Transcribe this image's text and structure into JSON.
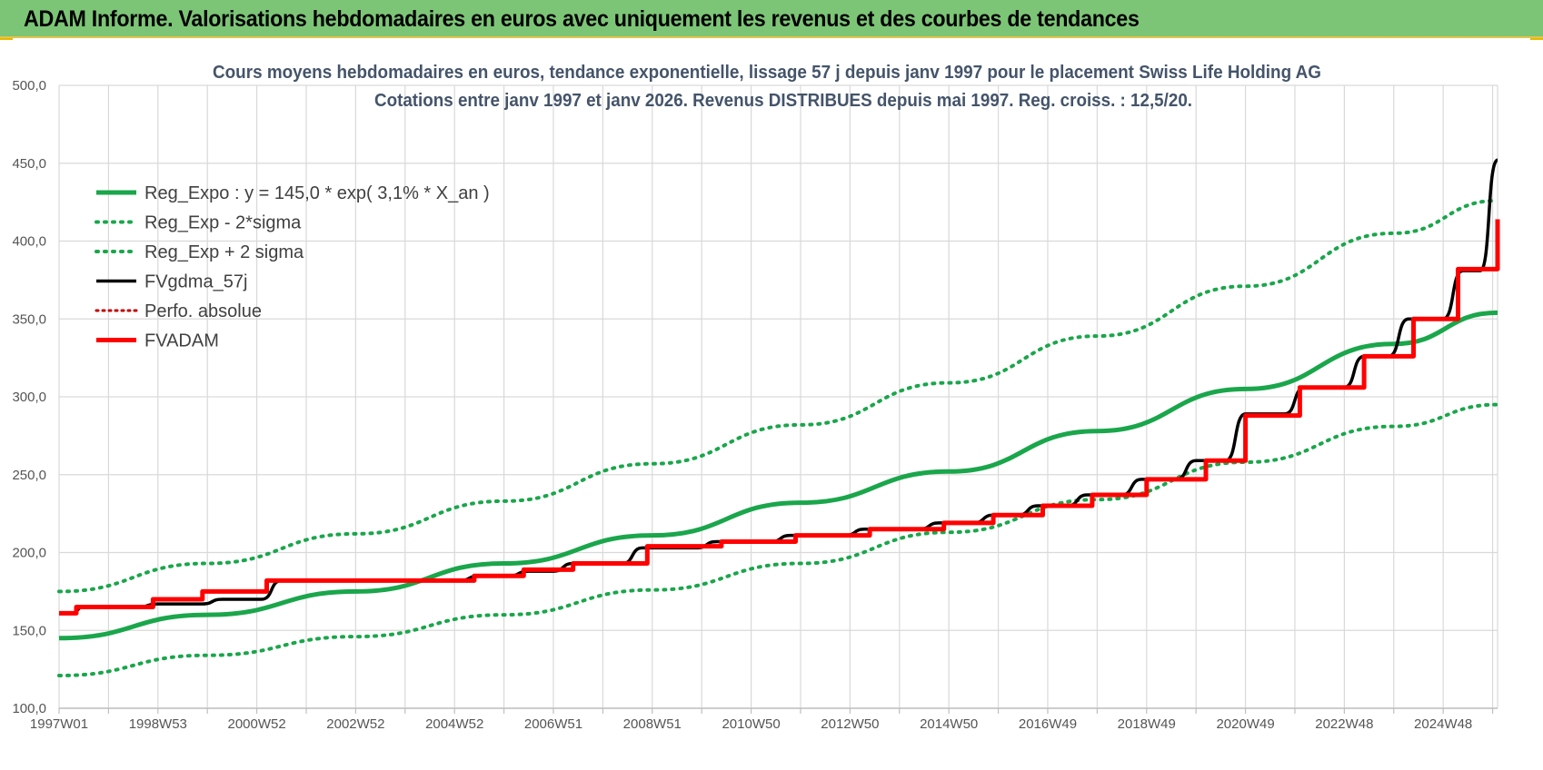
{
  "page": {
    "banner_title": "ADAM Informe. Valorisations hebdomadaires en euros avec uniquement les revenus et des courbes de tendances"
  },
  "colors": {
    "banner": "#7cc576",
    "trend": "#1aa64b",
    "band": "#1aa64b",
    "fvgdma": "#000000",
    "perfo": "#c00000",
    "fvadam": "#ff0000",
    "grid": "#d9d9d9",
    "title": "#44546a"
  },
  "chart_data": {
    "type": "line",
    "title_line1": "Cours moyens hebdomadaires en euros, tendance exponentielle, lissage 57 j depuis janv 1997 pour le placement Swiss Life Holding AG",
    "title_line2": "Cotations entre janv 1997 et janv 2026. Revenus DISTRIBUES depuis mai 1997. Reg. croiss. : 12,5/20.",
    "x_range": [
      1997.0,
      2026.1
    ],
    "ylim": [
      100,
      500
    ],
    "y_ticks": [
      "100,0",
      "150,0",
      "200,0",
      "250,0",
      "300,0",
      "350,0",
      "400,0",
      "450,0",
      "500,0"
    ],
    "y_tick_values": [
      100,
      150,
      200,
      250,
      300,
      350,
      400,
      450,
      500
    ],
    "x_tick_labels": [
      "1997W01",
      "1998W53",
      "2000W52",
      "2002W52",
      "2004W52",
      "2006W51",
      "2008W51",
      "2010W50",
      "2012W50",
      "2014W50",
      "2016W49",
      "2018W49",
      "2020W49",
      "2022W48",
      "2024W48"
    ],
    "x_tick_values": [
      1997.0,
      1999.0,
      2001.0,
      2003.0,
      2005.0,
      2007.0,
      2009.0,
      2011.0,
      2013.0,
      2015.0,
      2017.0,
      2019.0,
      2021.0,
      2023.0,
      2025.0
    ],
    "grid": true,
    "legend_position": "top-left",
    "series": [
      {
        "name": "Reg_Expo : y = 145,0 * exp( 3,1% *  X_an )",
        "style": "solid-thick",
        "x": [
          1997.0,
          2000.0,
          2003.0,
          2006.0,
          2009.0,
          2012.0,
          2015.0,
          2018.0,
          2021.0,
          2024.0,
          2026.1
        ],
        "values": [
          145.0,
          160.0,
          175.0,
          193.0,
          211.0,
          232.0,
          252.0,
          278.0,
          305.0,
          334.0,
          354.0
        ]
      },
      {
        "name": "Reg_Exp - 2*sigma",
        "style": "dotted",
        "x": [
          1997.0,
          2000.0,
          2003.0,
          2006.0,
          2009.0,
          2012.0,
          2015.0,
          2018.0,
          2021.0,
          2024.0,
          2026.1
        ],
        "values": [
          121.0,
          134.0,
          146.0,
          160.0,
          176.0,
          193.0,
          213.0,
          234.0,
          258.0,
          281.0,
          295.0
        ]
      },
      {
        "name": "Reg_Exp + 2 sigma",
        "style": "dotted",
        "x": [
          1997.0,
          2000.0,
          2003.0,
          2006.0,
          2009.0,
          2012.0,
          2015.0,
          2018.0,
          2021.0,
          2024.0,
          2026.1
        ],
        "values": [
          175.0,
          193.0,
          212.0,
          233.0,
          257.0,
          282.0,
          309.0,
          339.0,
          371.0,
          405.0,
          426.0
        ]
      },
      {
        "name": "FVgdma_57j",
        "style": "solid",
        "x": [
          1997.0,
          1997.5,
          1999.0,
          2000.3,
          2001.5,
          2004.4,
          2005.5,
          2006.5,
          2007.4,
          2008.8,
          2010.3,
          2011.8,
          2013.3,
          2014.8,
          2015.9,
          2016.8,
          2017.8,
          2018.9,
          2020.0,
          2021.0,
          2022.2,
          2023.4,
          2024.3,
          2025.4,
          2026.1
        ],
        "values": [
          161.0,
          165.0,
          167.0,
          170.0,
          182.0,
          182.0,
          185.0,
          188.0,
          193.0,
          203.0,
          207.0,
          211.0,
          215.0,
          219.0,
          224.0,
          230.0,
          237.0,
          247.0,
          259.0,
          289.0,
          306.0,
          326.0,
          350.0,
          381.0,
          452.0
        ]
      },
      {
        "name": "Perfo. absolue",
        "style": "dotted",
        "x": [],
        "values": []
      },
      {
        "name": "FVADAM",
        "style": "steps-thick",
        "x": [
          1997.0,
          1997.35,
          1998.9,
          1999.9,
          2001.2,
          2005.4,
          2006.4,
          2007.4,
          2008.9,
          2010.4,
          2011.9,
          2013.4,
          2014.9,
          2015.9,
          2016.9,
          2017.9,
          2019.0,
          2020.2,
          2021.0,
          2022.1,
          2023.4,
          2024.4,
          2025.3,
          2026.1
        ],
        "values": [
          161.0,
          165.0,
          170.0,
          175.0,
          182.0,
          185.0,
          189.0,
          193.0,
          204.0,
          207.0,
          211.0,
          215.0,
          219.0,
          224.0,
          230.0,
          237.0,
          247.0,
          259.0,
          288.0,
          306.0,
          326.0,
          350.0,
          382.0,
          414.0
        ]
      }
    ]
  }
}
